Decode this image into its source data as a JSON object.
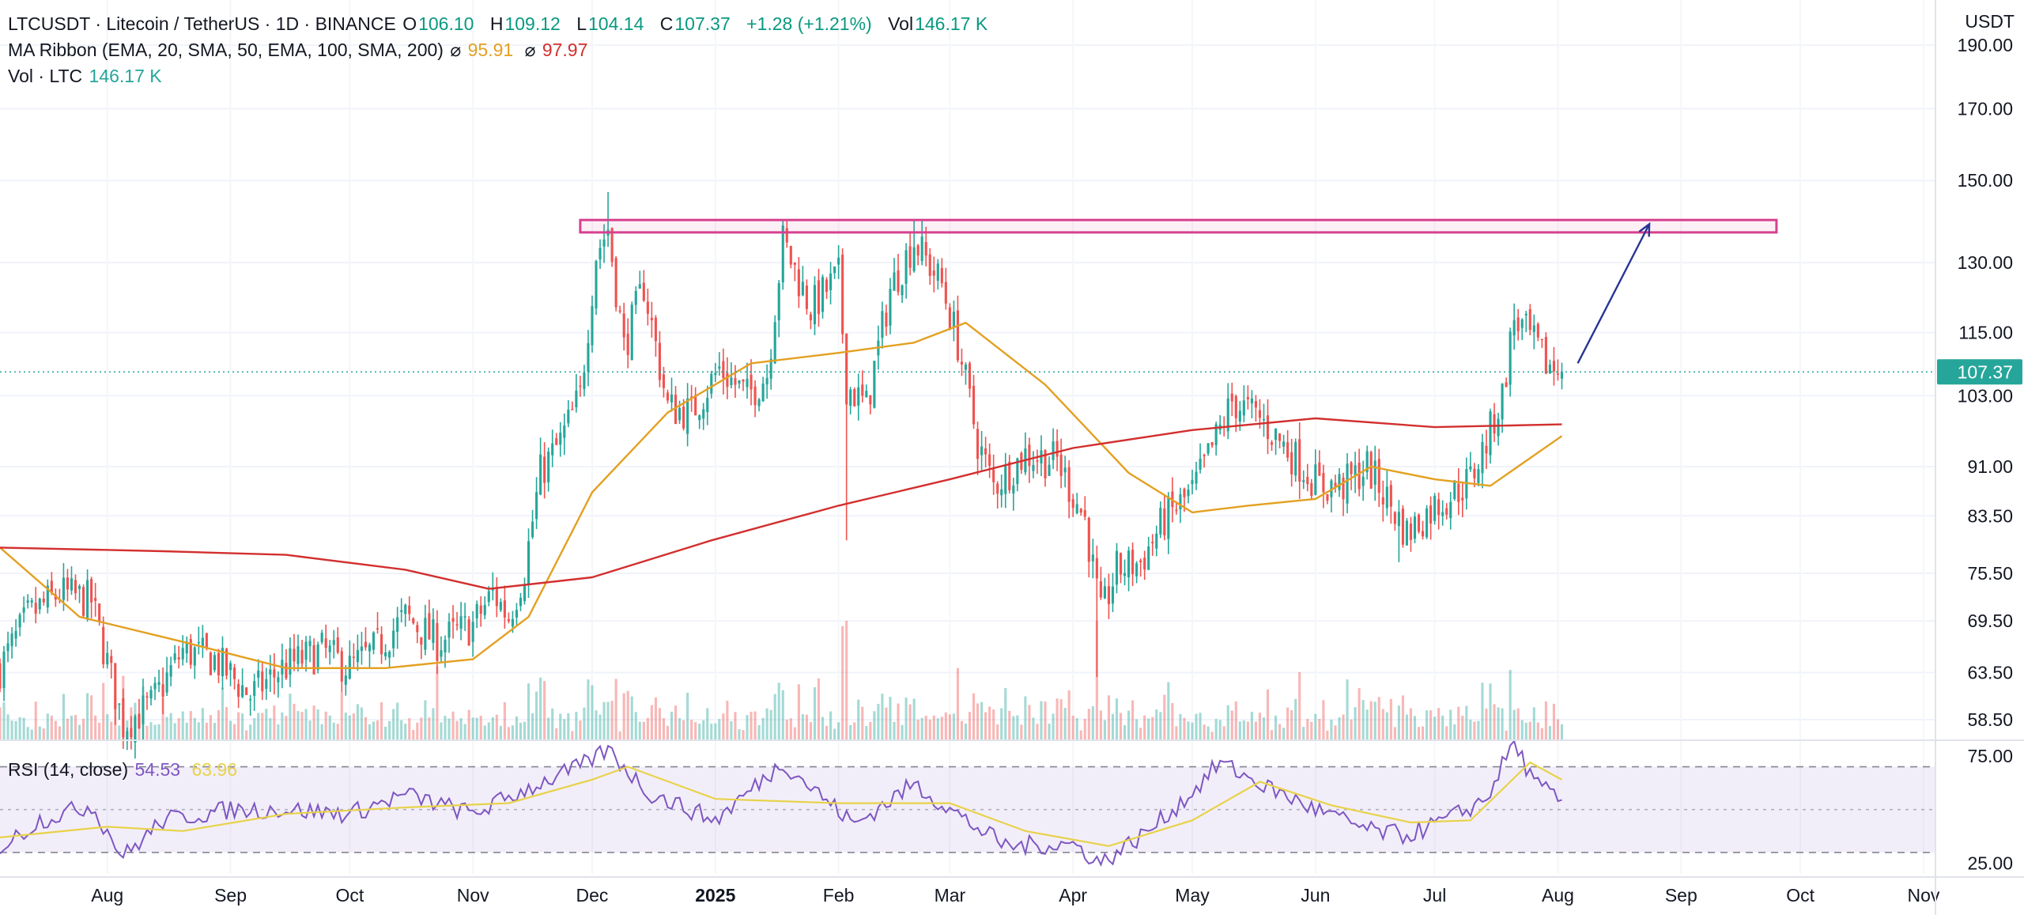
{
  "header": {
    "symbol": "LTCUSDT · Litecoin / TetherUS · 1D · BINANCE",
    "o_label": "O",
    "o_value": "106.10",
    "h_label": "H",
    "h_value": "109.12",
    "l_label": "L",
    "l_value": "104.14",
    "c_label": "C",
    "c_value": "107.37",
    "change": "+1.28 (+1.21%)",
    "vol_label": "Vol",
    "vol_value": "146.17 K"
  },
  "ribbon_legend": {
    "label": "MA Ribbon (EMA, 20, SMA, 50, EMA, 100, SMA, 200)",
    "ema_symbol": "⌀",
    "ema_value": "95.91",
    "sma_symbol": "⌀",
    "sma_value": "97.97"
  },
  "volume_legend": {
    "label": "Vol · LTC",
    "value": "146.17 K"
  },
  "rsi_legend": {
    "label": "RSI (14, close)",
    "value": "54.53",
    "ma_value": "63.96"
  },
  "price_axis": {
    "currency": "USDT",
    "current_price_label": "107.37"
  },
  "colors": {
    "up": "#26a69a",
    "down": "#ef5350",
    "ma_ema": "#e3a021",
    "ma_sma": "#d32f2f",
    "rsi": "#7e57c2",
    "rsi_ma": "#e8d24a",
    "resistance_box": "#d6418f",
    "arrow": "#283593"
  },
  "chart_data": [
    {
      "type": "candlestick",
      "title": "LTCUSDT · Litecoin / TetherUS · 1D · BINANCE",
      "y_scale": "log",
      "y_ticks": [
        190,
        170,
        150,
        130,
        115,
        103,
        91,
        83.5,
        75.5,
        69.5,
        63.5,
        58.5
      ],
      "y_tick_labels": [
        "190.00",
        "170.00",
        "150.00",
        "130.00",
        "115.00",
        "103.00",
        "91.00",
        "83.50",
        "75.50",
        "69.50",
        "63.50",
        "58.50"
      ],
      "x_tick_labels": [
        "Aug",
        "Sep",
        "Oct",
        "Nov",
        "Dec",
        "2025",
        "Feb",
        "Mar",
        "Apr",
        "May",
        "Jun",
        "Jul",
        "Aug",
        "Sep",
        "Oct",
        "Nov"
      ],
      "x_tick_dates": [
        "2024-08-01",
        "2024-09-01",
        "2024-10-01",
        "2024-11-01",
        "2024-12-01",
        "2025-01-01",
        "2025-02-01",
        "2025-03-01",
        "2025-04-01",
        "2025-05-01",
        "2025-06-01",
        "2025-07-01",
        "2025-08-01",
        "2025-09-01",
        "2025-10-01",
        "2025-11-01"
      ],
      "x_range": [
        "2024-07-05",
        "2025-11-04"
      ],
      "y_range": [
        56.5,
        200
      ],
      "close_path": [
        [
          "2024-07-05",
          64
        ],
        [
          "2024-07-12",
          70
        ],
        [
          "2024-07-20",
          73
        ],
        [
          "2024-07-28",
          72
        ],
        [
          "2024-08-05",
          58
        ],
        [
          "2024-08-12",
          60
        ],
        [
          "2024-08-20",
          66
        ],
        [
          "2024-08-28",
          65
        ],
        [
          "2024-09-06",
          61
        ],
        [
          "2024-09-14",
          64
        ],
        [
          "2024-09-24",
          66
        ],
        [
          "2024-10-01",
          64
        ],
        [
          "2024-10-07",
          66
        ],
        [
          "2024-10-15",
          70
        ],
        [
          "2024-10-23",
          67
        ],
        [
          "2024-11-01",
          69
        ],
        [
          "2024-11-06",
          73
        ],
        [
          "2024-11-10",
          70
        ],
        [
          "2024-11-14",
          76
        ],
        [
          "2024-11-18",
          90
        ],
        [
          "2024-11-23",
          95
        ],
        [
          "2024-11-28",
          103
        ],
        [
          "2024-12-02",
          132
        ],
        [
          "2024-12-05",
          138
        ],
        [
          "2024-12-09",
          112
        ],
        [
          "2024-12-14",
          125
        ],
        [
          "2024-12-20",
          101
        ],
        [
          "2024-12-26",
          100
        ],
        [
          "2025-01-02",
          108
        ],
        [
          "2025-01-09",
          103
        ],
        [
          "2025-01-14",
          107
        ],
        [
          "2025-01-18",
          135
        ],
        [
          "2025-01-25",
          120
        ],
        [
          "2025-02-01",
          127
        ],
        [
          "2025-02-03",
          105
        ],
        [
          "2025-02-08",
          101
        ],
        [
          "2025-02-14",
          124
        ],
        [
          "2025-02-20",
          135
        ],
        [
          "2025-02-27",
          125
        ],
        [
          "2025-03-03",
          113
        ],
        [
          "2025-03-08",
          95
        ],
        [
          "2025-03-12",
          88
        ],
        [
          "2025-03-20",
          93
        ],
        [
          "2025-03-28",
          92
        ],
        [
          "2025-04-04",
          83
        ],
        [
          "2025-04-08",
          70
        ],
        [
          "2025-04-12",
          76
        ],
        [
          "2025-04-18",
          77
        ],
        [
          "2025-04-24",
          83
        ],
        [
          "2025-05-01",
          87
        ],
        [
          "2025-05-08",
          97
        ],
        [
          "2025-05-11",
          102
        ],
        [
          "2025-05-18",
          99
        ],
        [
          "2025-05-26",
          93
        ],
        [
          "2025-06-02",
          88
        ],
        [
          "2025-06-08",
          88
        ],
        [
          "2025-06-14",
          91
        ],
        [
          "2025-06-19",
          86
        ],
        [
          "2025-06-24",
          81
        ],
        [
          "2025-07-01",
          85
        ],
        [
          "2025-07-06",
          87
        ],
        [
          "2025-07-10",
          89
        ],
        [
          "2025-07-14",
          95
        ],
        [
          "2025-07-18",
          103
        ],
        [
          "2025-07-21",
          118
        ],
        [
          "2025-07-25",
          114
        ],
        [
          "2025-07-29",
          109
        ],
        [
          "2025-08-02",
          107.37
        ]
      ],
      "spike_highs": [
        [
          "2024-12-05",
          147
        ],
        [
          "2025-01-18",
          140
        ],
        [
          "2025-02-20",
          140
        ],
        [
          "2025-07-21",
          121
        ]
      ],
      "spike_lows": [
        [
          "2025-02-03",
          80
        ],
        [
          "2025-04-07",
          63
        ],
        [
          "2025-06-22",
          77
        ]
      ],
      "last": {
        "open": 106.1,
        "high": 109.12,
        "low": 104.14,
        "close": 107.37
      },
      "ma_ribbon": {
        "series": [
          {
            "name": "EMA, 20 (⌀)",
            "color": "#e3a021",
            "points": [
              [
                "2024-07-05",
                79
              ],
              [
                "2024-07-25",
                70
              ],
              [
                "2024-08-20",
                67
              ],
              [
                "2024-09-15",
                64
              ],
              [
                "2024-10-10",
                64
              ],
              [
                "2024-11-01",
                65
              ],
              [
                "2024-11-15",
                70
              ],
              [
                "2024-12-01",
                87
              ],
              [
                "2024-12-20",
                100
              ],
              [
                "2025-01-10",
                109
              ],
              [
                "2025-02-01",
                111
              ],
              [
                "2025-02-20",
                113
              ],
              [
                "2025-03-05",
                117
              ],
              [
                "2025-03-25",
                105
              ],
              [
                "2025-04-15",
                90
              ],
              [
                "2025-05-01",
                84
              ],
              [
                "2025-05-15",
                85
              ],
              [
                "2025-06-01",
                86
              ],
              [
                "2025-06-15",
                91
              ],
              [
                "2025-07-01",
                89
              ],
              [
                "2025-07-15",
                88
              ],
              [
                "2025-08-02",
                96
              ]
            ]
          },
          {
            "name": "SMA, 200 (⌀)",
            "color": "#d32f2f",
            "points": [
              [
                "2024-07-05",
                79
              ],
              [
                "2024-08-15",
                78.5
              ],
              [
                "2024-09-15",
                78
              ],
              [
                "2024-10-15",
                76
              ],
              [
                "2024-11-05",
                73.5
              ],
              [
                "2024-12-01",
                75
              ],
              [
                "2024-12-31",
                80
              ],
              [
                "2025-02-01",
                85
              ],
              [
                "2025-03-01",
                89
              ],
              [
                "2025-04-01",
                94
              ],
              [
                "2025-05-01",
                97
              ],
              [
                "2025-06-01",
                99
              ],
              [
                "2025-07-01",
                97.5
              ],
              [
                "2025-08-02",
                97.97
              ]
            ]
          }
        ]
      },
      "annotations": {
        "resistance_zone": {
          "from": "2024-11-28",
          "to": "2025-09-25",
          "low": 137,
          "high": 140
        },
        "projection_arrow": {
          "from": [
            "2025-08-06",
            109
          ],
          "to": [
            "2025-08-24",
            139
          ]
        },
        "current_price_line": 107.37
      }
    },
    {
      "type": "bar",
      "title": "Vol · LTC",
      "last_value": 146.17,
      "unit": "K"
    },
    {
      "type": "line",
      "title": "RSI (14, close)",
      "y_range": [
        20,
        82
      ],
      "y_ticks": [
        75,
        25
      ],
      "y_tick_labels": [
        "75.00",
        "25.00"
      ],
      "band": [
        30,
        70
      ],
      "midline": 50,
      "series": [
        {
          "name": "RSI (14, close)",
          "color": "#7e57c2",
          "last_value": 54.53,
          "points": [
            [
              "2024-07-05",
              32
            ],
            [
              "2024-07-15",
              45
            ],
            [
              "2024-07-28",
              52
            ],
            [
              "2024-08-05",
              28
            ],
            [
              "2024-08-15",
              45
            ],
            [
              "2024-09-01",
              50
            ],
            [
              "2024-09-15",
              50
            ],
            [
              "2024-10-01",
              48
            ],
            [
              "2024-10-15",
              57
            ],
            [
              "2024-11-01",
              48
            ],
            [
              "2024-11-15",
              60
            ],
            [
              "2024-11-28",
              70
            ],
            [
              "2024-12-05",
              78
            ],
            [
              "2024-12-15",
              58
            ],
            [
              "2025-01-01",
              45
            ],
            [
              "2025-01-18",
              72
            ],
            [
              "2025-02-05",
              43
            ],
            [
              "2025-02-20",
              62
            ],
            [
              "2025-03-05",
              45
            ],
            [
              "2025-03-15",
              33
            ],
            [
              "2025-04-01",
              34
            ],
            [
              "2025-04-08",
              25
            ],
            [
              "2025-04-20",
              40
            ],
            [
              "2025-05-01",
              58
            ],
            [
              "2025-05-08",
              72
            ],
            [
              "2025-05-18",
              62
            ],
            [
              "2025-06-01",
              50
            ],
            [
              "2025-06-15",
              40
            ],
            [
              "2025-06-24",
              38
            ],
            [
              "2025-07-05",
              46
            ],
            [
              "2025-07-14",
              55
            ],
            [
              "2025-07-21",
              82
            ],
            [
              "2025-07-26",
              62
            ],
            [
              "2025-08-02",
              54.53
            ]
          ]
        },
        {
          "name": "RSI MA",
          "color": "#e8d24a",
          "last_value": 63.96,
          "points": [
            [
              "2024-07-05",
              37
            ],
            [
              "2024-08-01",
              42
            ],
            [
              "2024-08-20",
              40
            ],
            [
              "2024-09-15",
              48
            ],
            [
              "2024-10-15",
              51
            ],
            [
              "2024-11-10",
              53
            ],
            [
              "2024-12-01",
              64
            ],
            [
              "2024-12-10",
              70
            ],
            [
              "2025-01-01",
              55
            ],
            [
              "2025-02-01",
              53
            ],
            [
              "2025-03-01",
              53
            ],
            [
              "2025-03-20",
              40
            ],
            [
              "2025-04-10",
              33
            ],
            [
              "2025-05-01",
              45
            ],
            [
              "2025-05-18",
              63
            ],
            [
              "2025-06-05",
              52
            ],
            [
              "2025-06-25",
              44
            ],
            [
              "2025-07-10",
              45
            ],
            [
              "2025-07-25",
              72
            ],
            [
              "2025-08-02",
              63.96
            ]
          ]
        }
      ]
    }
  ]
}
